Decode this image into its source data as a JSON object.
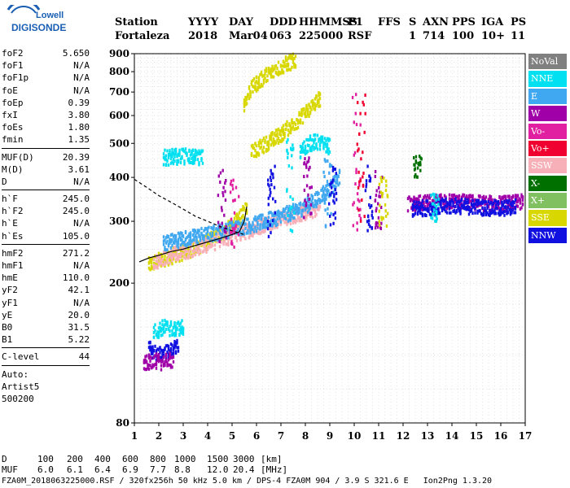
{
  "logo": {
    "line1": "Lowell",
    "line2": "DIGISONDE"
  },
  "header": {
    "labels": [
      "Station",
      "YYYY",
      "DAY",
      "DDD",
      "HHMMSS",
      "P1",
      "FFS",
      "S",
      "AXN",
      "PPS",
      "IGA",
      "PS"
    ],
    "values": [
      "Fortaleza",
      "2018",
      "Mar04",
      "063",
      "225000",
      "RSF",
      "",
      "1",
      "714",
      "100",
      "10+",
      "11"
    ]
  },
  "params": [
    {
      "name": "foF2",
      "value": "5.650"
    },
    {
      "name": "foF1",
      "value": "N/A"
    },
    {
      "name": "foF1p",
      "value": "N/A"
    },
    {
      "name": "foE",
      "value": "N/A"
    },
    {
      "name": "foEp",
      "value": "0.39"
    },
    {
      "name": "fxI",
      "value": "3.80"
    },
    {
      "name": "foEs",
      "value": "1.80"
    },
    {
      "name": "fmin",
      "value": "1.35"
    },
    {
      "sep": true
    },
    {
      "name": "MUF(D)",
      "value": "20.39"
    },
    {
      "name": "M(D)",
      "value": "3.61"
    },
    {
      "name": "D",
      "value": "N/A"
    },
    {
      "sep": true
    },
    {
      "name": "h`F",
      "value": "245.0"
    },
    {
      "name": "h`F2",
      "value": "245.0"
    },
    {
      "name": "h`E",
      "value": "N/A"
    },
    {
      "name": "h`Es",
      "value": "105.0"
    },
    {
      "sep": true
    },
    {
      "name": "hmF2",
      "value": "271.2"
    },
    {
      "name": "hmF1",
      "value": "N/A"
    },
    {
      "name": "hmE",
      "value": "110.0"
    },
    {
      "name": "yF2",
      "value": "42.1"
    },
    {
      "name": "yF1",
      "value": "N/A"
    },
    {
      "name": "yE",
      "value": "20.0"
    },
    {
      "name": "B0",
      "value": "31.5"
    },
    {
      "name": "B1",
      "value": "5.22"
    },
    {
      "sep": true
    },
    {
      "name": "C-level",
      "value": "44"
    },
    {
      "sep": true
    },
    {
      "text": "Auto:"
    },
    {
      "text": "Artist5"
    },
    {
      "text": "500200"
    }
  ],
  "legend": [
    {
      "label": "NoVal",
      "color": "#808080"
    },
    {
      "label": "NNE",
      "color": "#00e0f0"
    },
    {
      "label": "E",
      "color": "#40a8f0"
    },
    {
      "label": "W",
      "color": "#a000a8"
    },
    {
      "label": "Vo-",
      "color": "#e020a0"
    },
    {
      "label": "Vo+",
      "color": "#f00030"
    },
    {
      "label": "SSW",
      "color": "#f8b0b8"
    },
    {
      "label": "X-",
      "color": "#007000"
    },
    {
      "label": "X+",
      "color": "#80c060"
    },
    {
      "label": "SSE",
      "color": "#d8d800"
    },
    {
      "label": "NNW",
      "color": "#1010e0"
    }
  ],
  "conversion": {
    "d_label": "D",
    "d_values": [
      "100",
      "200",
      "400",
      "600",
      "800",
      "1000",
      "1500",
      "3000"
    ],
    "d_unit": "[km]",
    "muf_label": "MUF",
    "muf_values": [
      "6.0",
      "6.1",
      "6.4",
      "6.9",
      "7.7",
      "8.8",
      "12.0",
      "20.4"
    ],
    "muf_unit": "[MHz]"
  },
  "footer": "FZA0M_2018063225000.RSF / 320fx256h 50 kHz 5.0 km / DPS-4 FZA0M 904 / 3.9 S 321.6 E   Ion2Png 1.3.20",
  "chart_data": {
    "type": "scatter",
    "x_ticks": [
      1,
      2,
      3,
      4,
      5,
      6,
      7,
      8,
      9,
      10,
      11,
      12,
      13,
      14,
      15,
      16,
      17
    ],
    "y_ticks": [
      80,
      200,
      300,
      400,
      500,
      600,
      700,
      800,
      900
    ],
    "xlim": [
      1,
      17
    ],
    "ylim": [
      80,
      900
    ],
    "y_scale": "log",
    "grid": true,
    "legend_position": "right",
    "traces": [
      {
        "color": "#d8d800",
        "x": [
          1.6,
          2.0,
          2.5,
          3.0,
          3.5,
          4.0,
          4.5,
          5.0,
          5.4,
          5.6
        ],
        "y": [
          225,
          232,
          238,
          245,
          252,
          262,
          275,
          290,
          310,
          330
        ]
      },
      {
        "color": "#f8b0b8",
        "x": [
          1.8,
          2.5,
          3.2,
          4.0,
          4.8,
          5.5,
          6.2,
          7.0,
          7.8,
          8.6
        ],
        "y": [
          230,
          240,
          248,
          258,
          268,
          280,
          292,
          305,
          315,
          325
        ]
      },
      {
        "color": "#40a8f0",
        "x": [
          2.2,
          3.0,
          4.0,
          5.0,
          6.0,
          7.0,
          7.8,
          8.4,
          9.0,
          9.4
        ],
        "y": [
          260,
          268,
          275,
          285,
          295,
          310,
          325,
          345,
          370,
          400
        ]
      },
      {
        "color": "#d8d800",
        "x": [
          5.8,
          6.2,
          6.6,
          7.0,
          7.4,
          7.8,
          8.2,
          8.6
        ],
        "y": [
          470,
          490,
          510,
          530,
          560,
          590,
          630,
          670
        ]
      },
      {
        "color": "#d8d800",
        "x": [
          5.5,
          5.7,
          6.0,
          6.4,
          6.8,
          7.2,
          7.6
        ],
        "y": [
          650,
          700,
          740,
          780,
          810,
          840,
          860
        ]
      },
      {
        "color": "#00e0f0",
        "x": [
          2.2,
          2.6,
          3.0,
          3.4,
          3.8
        ],
        "y": [
          455,
          458,
          460,
          458,
          455
        ]
      },
      {
        "color": "#00e0f0",
        "x": [
          7.8,
          8.0,
          8.2,
          8.4,
          8.6,
          8.8,
          9.0
        ],
        "y": [
          470,
          490,
          500,
          505,
          500,
          495,
          490
        ]
      },
      {
        "color": "#a000a8",
        "x": [
          12.2,
          12.8,
          13.4,
          14.0,
          14.6,
          15.2,
          15.8,
          16.4,
          16.9
        ],
        "y": [
          335,
          338,
          340,
          342,
          340,
          338,
          336,
          338,
          340
        ]
      },
      {
        "color": "#1010e0",
        "x": [
          12.4,
          13.0,
          13.6,
          14.2,
          14.8,
          15.4,
          16.0,
          16.6
        ],
        "y": [
          325,
          328,
          330,
          332,
          330,
          328,
          326,
          330
        ]
      },
      {
        "color": "#00e0f0",
        "x": [
          1.8,
          2.2,
          2.6,
          3.0
        ],
        "y": [
          145,
          150,
          148,
          150
        ]
      },
      {
        "color": "#1010e0",
        "x": [
          1.6,
          2.0,
          2.4,
          2.8
        ],
        "y": [
          130,
          125,
          128,
          132
        ]
      },
      {
        "color": "#a000a8",
        "x": [
          1.4,
          1.8,
          2.2,
          2.6
        ],
        "y": [
          118,
          120,
          119,
          121
        ]
      }
    ],
    "profile": {
      "color": "#000000",
      "x": [
        1.2,
        1.6,
        2.0,
        2.5,
        3.0,
        3.5,
        4.0,
        4.5,
        5.0,
        5.3,
        5.5,
        5.6
      ],
      "y": [
        230,
        236,
        240,
        246,
        250,
        256,
        262,
        268,
        275,
        280,
        300,
        330
      ]
    },
    "profile_dashed": {
      "color": "#000000",
      "x": [
        1.0,
        1.5,
        2.0,
        2.5,
        3.0,
        3.5,
        4.0,
        4.5,
        5.0,
        5.5
      ],
      "y": [
        395,
        375,
        355,
        340,
        325,
        310,
        300,
        290,
        282,
        275
      ]
    }
  }
}
